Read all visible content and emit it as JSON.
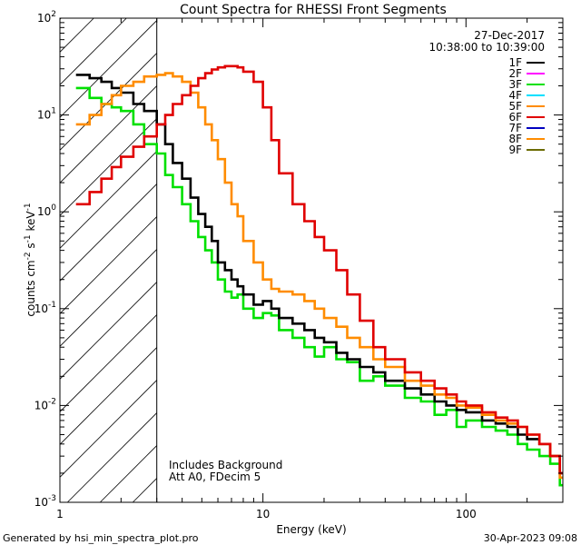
{
  "chart_data": {
    "type": "line",
    "title": "Count Spectra for RHESSI Front Segments",
    "xlabel": "Energy (keV)",
    "ylabel": {
      "base": "counts cm",
      "exp1": "-2",
      "mid1": " s",
      "exp2": "-1",
      "mid2": " keV",
      "exp3": "-1"
    },
    "xscale": "log",
    "yscale": "log",
    "xlim": [
      1.0,
      300
    ],
    "ylim": [
      0.001,
      100
    ],
    "x_ticks": [
      {
        "value": 1,
        "label": "1"
      },
      {
        "value": 10,
        "label": "10"
      },
      {
        "value": 100,
        "label": "100"
      }
    ],
    "y_ticks": [
      {
        "value": 0.001,
        "base": "10",
        "exp": "-3"
      },
      {
        "value": 0.01,
        "base": "10",
        "exp": "-2"
      },
      {
        "value": 0.1,
        "base": "10",
        "exp": "-1"
      },
      {
        "value": 1,
        "base": "10",
        "exp": "0"
      },
      {
        "value": 10,
        "base": "10",
        "exp": "1"
      },
      {
        "value": 100,
        "base": "10",
        "exp": "2"
      }
    ],
    "excluded_region": {
      "from": 1.0,
      "to": 3.0,
      "style": "hatched"
    },
    "info": {
      "date": "27-Dec-2017",
      "time_range": "10:38:00 to 10:39:00"
    },
    "legend": [
      {
        "label": "1F",
        "color": "#000000"
      },
      {
        "label": "2F",
        "color": "#ff00ff"
      },
      {
        "label": "3F",
        "color": "#00e000"
      },
      {
        "label": "4F",
        "color": "#00e0ff"
      },
      {
        "label": "5F",
        "color": "#ff8c00"
      },
      {
        "label": "6F",
        "color": "#e00000"
      },
      {
        "label": "7F",
        "color": "#0000c0"
      },
      {
        "label": "8F",
        "color": "#ff8c00"
      },
      {
        "label": "9F",
        "color": "#6b6b00"
      }
    ],
    "annotations": [
      "Includes Background",
      "Att A0, FDecim 5"
    ],
    "series": [
      {
        "name": "3F",
        "color": "#00e000",
        "x": [
          1.2,
          1.4,
          1.6,
          1.8,
          2.0,
          2.3,
          2.6,
          3.0,
          3.3,
          3.6,
          4.0,
          4.4,
          4.8,
          5.2,
          5.6,
          6.0,
          6.5,
          7.0,
          7.5,
          8.0,
          9.0,
          10,
          11,
          12,
          14,
          16,
          18,
          20,
          23,
          26,
          30,
          35,
          40,
          50,
          60,
          70,
          80,
          90,
          100,
          120,
          140,
          160,
          180,
          200,
          230,
          260,
          290
        ],
        "y": [
          19,
          15,
          13,
          12,
          11,
          8,
          5,
          4.0,
          2.4,
          1.8,
          1.2,
          0.8,
          0.55,
          0.4,
          0.3,
          0.2,
          0.15,
          0.13,
          0.14,
          0.1,
          0.08,
          0.09,
          0.085,
          0.06,
          0.05,
          0.04,
          0.032,
          0.04,
          0.03,
          0.028,
          0.018,
          0.02,
          0.016,
          0.012,
          0.011,
          0.008,
          0.009,
          0.006,
          0.007,
          0.006,
          0.0055,
          0.005,
          0.004,
          0.0035,
          0.003,
          0.0025,
          0.0015
        ]
      },
      {
        "name": "1F",
        "color": "#000000",
        "x": [
          1.2,
          1.4,
          1.6,
          1.8,
          2.0,
          2.3,
          2.6,
          3.0,
          3.3,
          3.6,
          4.0,
          4.4,
          4.8,
          5.2,
          5.6,
          6.0,
          6.5,
          7.0,
          7.5,
          8.0,
          9.0,
          10,
          11,
          12,
          14,
          16,
          18,
          20,
          23,
          26,
          30,
          35,
          40,
          50,
          60,
          70,
          80,
          90,
          100,
          120,
          140,
          160,
          180,
          200,
          230,
          260,
          290
        ],
        "y": [
          26,
          24,
          22,
          19,
          17,
          13,
          11,
          8,
          5,
          3.2,
          2.2,
          1.4,
          0.95,
          0.7,
          0.5,
          0.3,
          0.25,
          0.2,
          0.17,
          0.14,
          0.11,
          0.12,
          0.1,
          0.08,
          0.07,
          0.06,
          0.05,
          0.045,
          0.035,
          0.03,
          0.025,
          0.022,
          0.018,
          0.015,
          0.013,
          0.011,
          0.01,
          0.009,
          0.0085,
          0.007,
          0.0065,
          0.006,
          0.005,
          0.0045,
          0.004,
          0.003,
          0.002
        ]
      },
      {
        "name": "5F",
        "color": "#ff8c00",
        "x": [
          1.2,
          1.4,
          1.6,
          1.8,
          2.0,
          2.3,
          2.6,
          3.0,
          3.3,
          3.6,
          4.0,
          4.4,
          4.8,
          5.2,
          5.6,
          6.0,
          6.5,
          7.0,
          7.5,
          8.0,
          9.0,
          10,
          11,
          12,
          14,
          16,
          18,
          20,
          23,
          26,
          30,
          35,
          40,
          50,
          60,
          70,
          80,
          90,
          100,
          120,
          140,
          160,
          180,
          200,
          230,
          260,
          290
        ],
        "y": [
          8,
          10,
          13,
          16,
          20,
          22,
          25,
          26,
          27,
          25,
          22,
          17,
          12,
          8,
          5.5,
          3.5,
          2.0,
          1.2,
          0.9,
          0.5,
          0.3,
          0.2,
          0.16,
          0.15,
          0.14,
          0.12,
          0.1,
          0.08,
          0.065,
          0.05,
          0.04,
          0.03,
          0.025,
          0.018,
          0.016,
          0.013,
          0.012,
          0.01,
          0.0095,
          0.008,
          0.007,
          0.0065,
          0.006,
          0.005,
          0.004,
          0.003,
          0.0018
        ]
      },
      {
        "name": "6F",
        "color": "#e00000",
        "x": [
          1.2,
          1.4,
          1.6,
          1.8,
          2.0,
          2.3,
          2.6,
          3.0,
          3.3,
          3.6,
          4.0,
          4.4,
          4.8,
          5.2,
          5.6,
          6.0,
          6.5,
          7.0,
          7.5,
          8.0,
          9.0,
          10,
          11,
          12,
          14,
          16,
          18,
          20,
          23,
          26,
          30,
          35,
          40,
          50,
          60,
          70,
          80,
          90,
          100,
          120,
          140,
          160,
          180,
          200,
          230,
          260,
          290
        ],
        "y": [
          1.2,
          1.6,
          2.2,
          2.9,
          3.7,
          4.7,
          6.0,
          8.0,
          10,
          13,
          16,
          20,
          24,
          27,
          29.5,
          31,
          32,
          32,
          31,
          28,
          22,
          12,
          5.5,
          2.5,
          1.2,
          0.8,
          0.55,
          0.4,
          0.25,
          0.14,
          0.075,
          0.04,
          0.03,
          0.022,
          0.018,
          0.015,
          0.013,
          0.011,
          0.01,
          0.0085,
          0.0075,
          0.007,
          0.006,
          0.005,
          0.004,
          0.003,
          0.002
        ]
      }
    ]
  },
  "footer": {
    "left": "Generated by hsi_min_spectra_plot.pro",
    "right": "30-Apr-2023 09:08"
  }
}
